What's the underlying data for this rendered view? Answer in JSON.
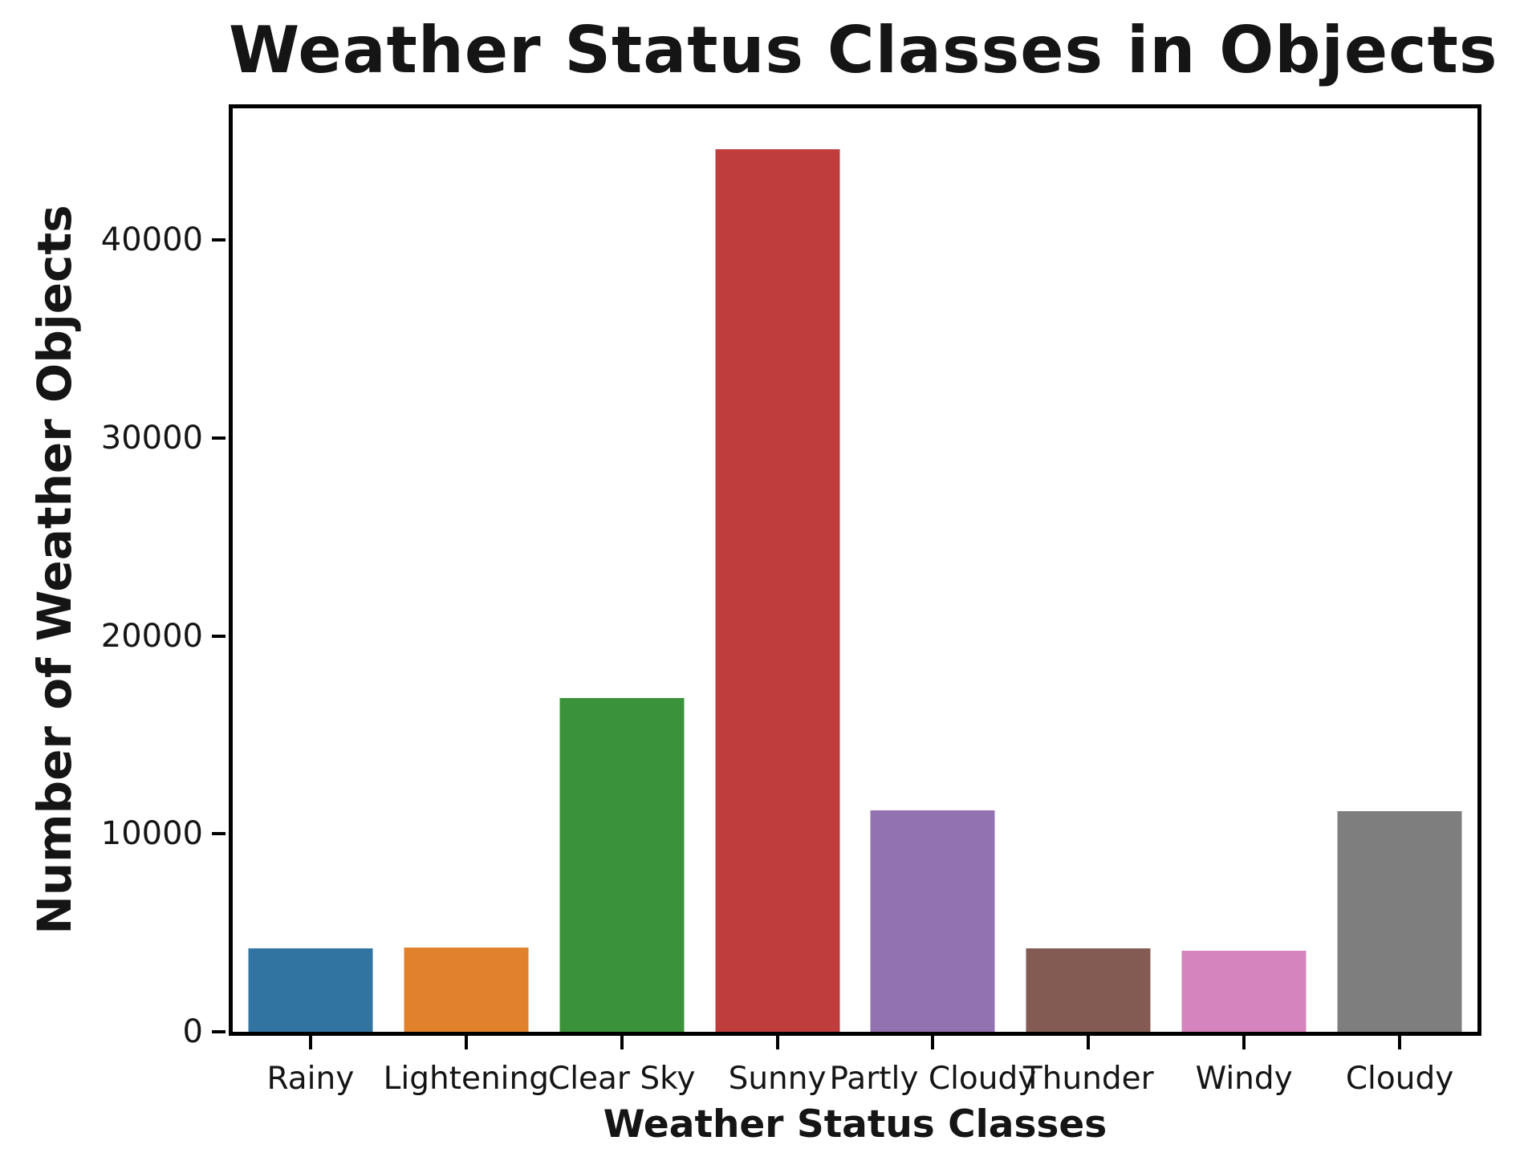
{
  "chart_data": {
    "type": "bar",
    "title": "Weather Status Classes in Objects",
    "xlabel": "Weather Status Classes",
    "ylabel": "Number of Weather Objects",
    "categories": [
      "Rainy",
      "Lightening",
      "Clear Sky",
      "Sunny",
      "Partly Cloudy",
      "Thunder",
      "Windy",
      "Cloudy"
    ],
    "values": [
      4200,
      4250,
      16850,
      44600,
      11200,
      4200,
      4080,
      11150
    ],
    "bar_colors": [
      "#3274a1",
      "#e1812c",
      "#3a923a",
      "#c03d3e",
      "#9372b2",
      "#845b53",
      "#d684bd",
      "#7e7e7e"
    ],
    "ytick_values": [
      0,
      10000,
      20000,
      30000,
      40000
    ],
    "ytick_labels": [
      "0",
      "10000",
      "20000",
      "30000",
      "40000"
    ],
    "ylim": [
      0,
      46650
    ],
    "grid": false,
    "legend_position": "none",
    "axis_color": "#000000",
    "text_color": "#151515",
    "background_color": "#ffffff"
  }
}
